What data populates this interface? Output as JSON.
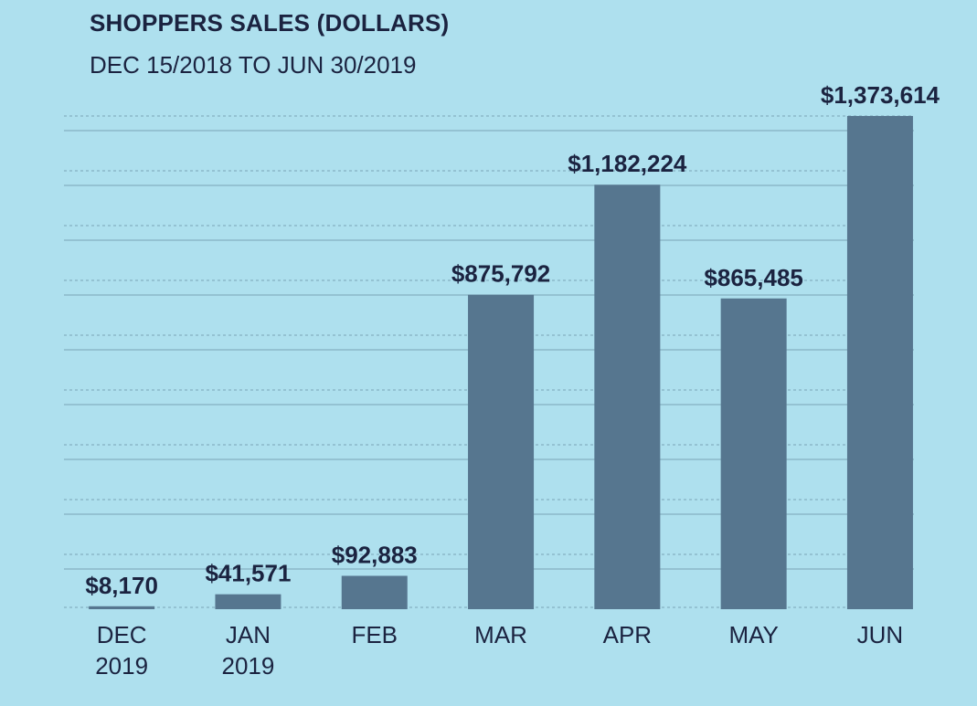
{
  "chart_data": {
    "type": "bar",
    "title": "SHOPPERS SALES (DOLLARS)",
    "subtitle": "DEC 15/2018 TO JUN 30/2019",
    "categories": [
      [
        "DEC",
        "2019"
      ],
      [
        "JAN",
        "2019"
      ],
      [
        "FEB"
      ],
      [
        "MAR"
      ],
      [
        "APR"
      ],
      [
        "MAY"
      ],
      [
        "JUN"
      ]
    ],
    "values": [
      8170,
      41571,
      92883,
      875792,
      1182224,
      865485,
      1373614
    ],
    "value_labels": [
      "$8,170",
      "$41,571",
      "$92,883",
      "$875,792",
      "$1,182,224",
      "$865,485",
      "$1,373,614"
    ],
    "ylim": [
      0,
      1373614
    ],
    "grid": true,
    "legend": "none",
    "colors": {
      "background": "#aee0ee",
      "bar": "#56768f",
      "text": "#1b2340",
      "grid": "#7aa3b5"
    }
  }
}
